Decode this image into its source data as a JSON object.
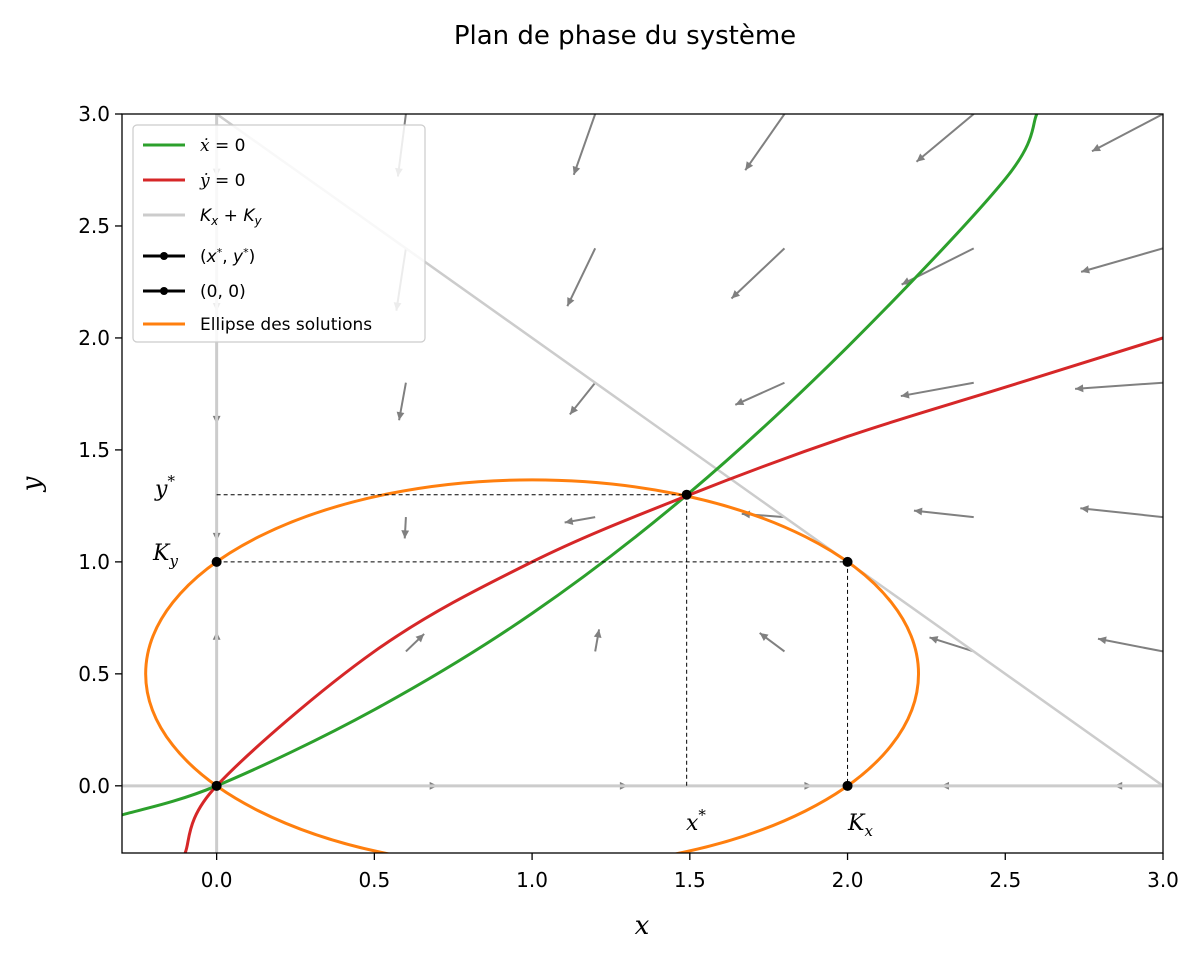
{
  "chart_data": {
    "type": "line",
    "title": "Plan de phase du système",
    "xlabel": "x",
    "ylabel": "y",
    "xlim": [
      -0.3,
      3.0
    ],
    "ylim": [
      -0.3,
      3.0
    ],
    "xticks": [
      "0.0",
      "0.5",
      "1.0",
      "1.5",
      "2.0",
      "2.5",
      "3.0"
    ],
    "yticks": [
      "0.0",
      "0.5",
      "1.0",
      "1.5",
      "2.0",
      "2.5",
      "3.0"
    ],
    "xtick_values": [
      0,
      0.5,
      1.0,
      1.5,
      2.0,
      2.5,
      3.0
    ],
    "ytick_values": [
      0,
      0.5,
      1.0,
      1.5,
      2.0,
      2.5,
      3.0
    ],
    "grid": false,
    "legend_position": "top-left",
    "series": [
      {
        "name": "ẋ = 0",
        "color": "#2ca02c",
        "x": [
          -0.3,
          0,
          0.5,
          1.0,
          1.5,
          2.0,
          2.5,
          2.6
        ],
        "y": [
          -0.13,
          0,
          0.34,
          0.77,
          1.31,
          1.96,
          2.71,
          3.0
        ]
      },
      {
        "name": "ẏ = 0",
        "color": "#d62728",
        "x": [
          -0.1,
          0,
          0.5,
          1.0,
          1.5,
          2.0,
          2.5,
          3.0
        ],
        "y": [
          -0.3,
          0,
          0.6,
          1.0,
          1.3,
          1.56,
          1.78,
          2.0
        ]
      },
      {
        "name": "Kx + Ky",
        "color": "#cccccc",
        "x": [
          0,
          3.0
        ],
        "y": [
          3.0,
          0
        ]
      },
      {
        "name": "(x*, y*)",
        "color": "#000000",
        "x": [
          1.49
        ],
        "y": [
          1.3
        ]
      },
      {
        "name": "(0, 0)",
        "color": "#000000",
        "x": [
          0
        ],
        "y": [
          0
        ]
      },
      {
        "name": "Ellipse des solutions",
        "color": "#ff7f0e",
        "center": [
          1.0,
          0.5
        ],
        "semi_axes": [
          1.225,
          0.866
        ]
      }
    ],
    "points": [
      {
        "x": 0,
        "y": 1.0
      },
      {
        "x": 2.0,
        "y": 1.0
      },
      {
        "x": 2.0,
        "y": 0
      },
      {
        "x": 0,
        "y": 0
      },
      {
        "x": 1.49,
        "y": 1.3
      }
    ],
    "annotations": {
      "y_star": "y*",
      "x_star": "x*",
      "k_y": "Ky",
      "k_x": "Kx"
    },
    "quiver": {
      "color": "#808080",
      "grid_x": [
        0,
        0.6,
        1.2,
        1.8,
        2.4,
        3.0
      ],
      "grid_y": [
        0,
        0.6,
        1.2,
        1.8,
        2.4,
        3.0
      ]
    },
    "legend_entries": [
      "ẋ = 0",
      "ẏ = 0",
      "Kx + Ky",
      "(x*, y*)",
      "(0, 0)",
      "Ellipse des solutions"
    ]
  }
}
